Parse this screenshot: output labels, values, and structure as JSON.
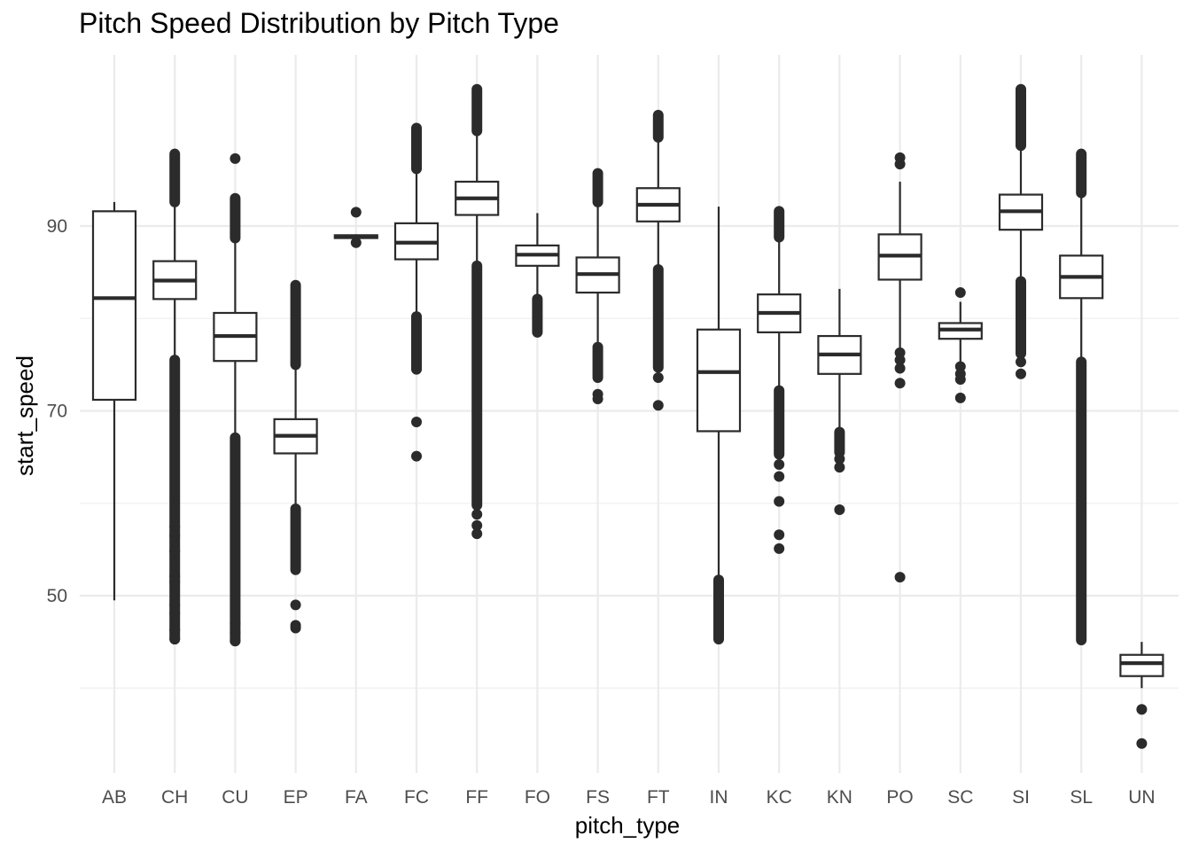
{
  "chart_data": {
    "type": "boxplot",
    "title": "Pitch Speed Distribution by Pitch Type",
    "xlabel": "pitch_type",
    "ylabel": "start_speed",
    "ylim": [
      33,
      96
    ],
    "yticks": [
      50,
      70,
      90
    ],
    "y_minor_ticks": [
      40,
      60,
      80
    ],
    "grid": true,
    "categories": [
      "AB",
      "CH",
      "CU",
      "EP",
      "FA",
      "FC",
      "FF",
      "FO",
      "FS",
      "FT",
      "IN",
      "KC",
      "KN",
      "PO",
      "SC",
      "SI",
      "SL",
      "UN"
    ],
    "boxes": [
      {
        "category": "AB",
        "whisker_low": 49.5,
        "q1": 71.2,
        "median": 82.2,
        "q3": 91.6,
        "whisker_high": 92.6,
        "outliers": []
      },
      {
        "category": "CH",
        "whisker_low": 75.6,
        "q1": 82.1,
        "median": 84.1,
        "q3": 86.2,
        "whisker_high": 92.5,
        "outlier_ranges": [
          [
            45.3,
            75.5
          ],
          [
            92.6,
            97.8
          ]
        ],
        "outliers": [
          49.0,
          48.1,
          46.3,
          45.3,
          51.5,
          52.1,
          54.8,
          56.5,
          57.5
        ]
      },
      {
        "category": "CU",
        "whisker_low": 67.2,
        "q1": 75.4,
        "median": 78.1,
        "q3": 80.6,
        "whisker_high": 88.6,
        "outlier_ranges": [
          [
            45.1,
            67.1
          ],
          [
            88.7,
            93.0
          ]
        ],
        "outliers": [
          97.3,
          47.0,
          46.0,
          45.1
        ]
      },
      {
        "category": "EP",
        "whisker_low": 59.5,
        "q1": 65.4,
        "median": 67.3,
        "q3": 69.1,
        "whisker_high": 74.8,
        "outlier_ranges": [
          [
            52.8,
            59.4
          ],
          [
            75.0,
            83.6
          ]
        ],
        "outliers": [
          49.0,
          46.8,
          46.5
        ]
      },
      {
        "category": "FA",
        "whisker_low": 88.6,
        "q1": 88.7,
        "median": 88.9,
        "q3": 89.0,
        "whisker_high": 89.1,
        "outliers": [
          91.5,
          88.2
        ]
      },
      {
        "category": "FC",
        "whisker_low": 80.3,
        "q1": 86.4,
        "median": 88.2,
        "q3": 90.3,
        "whisker_high": 96.1,
        "outlier_ranges": [
          [
            74.5,
            80.2
          ],
          [
            96.2,
            100.6
          ]
        ],
        "outliers": [
          68.8,
          65.1
        ]
      },
      {
        "category": "FF",
        "whisker_low": 85.8,
        "q1": 91.2,
        "median": 93.0,
        "q3": 94.8,
        "whisker_high": 100.2,
        "outlier_ranges": [
          [
            59.8,
            85.7
          ],
          [
            100.3,
            104.8
          ]
        ],
        "outliers": [
          58.8,
          57.6,
          56.7
        ]
      },
      {
        "category": "FO",
        "whisker_low": 82.2,
        "q1": 85.7,
        "median": 86.9,
        "q3": 87.9,
        "whisker_high": 91.4,
        "outlier_ranges": [
          [
            78.5,
            82.1
          ]
        ],
        "outliers": []
      },
      {
        "category": "FS",
        "whisker_low": 77.0,
        "q1": 82.8,
        "median": 84.8,
        "q3": 86.6,
        "whisker_high": 92.5,
        "outlier_ranges": [
          [
            73.6,
            76.9
          ],
          [
            92.6,
            95.7
          ]
        ],
        "outliers": [
          71.8,
          71.3
        ]
      },
      {
        "category": "FT",
        "whisker_low": 85.4,
        "q1": 90.5,
        "median": 92.3,
        "q3": 94.1,
        "whisker_high": 99.4,
        "outlier_ranges": [
          [
            74.7,
            85.3
          ],
          [
            99.6,
            102.0
          ]
        ],
        "outliers": [
          73.6,
          70.6
        ]
      },
      {
        "category": "IN",
        "whisker_low": 51.8,
        "q1": 67.8,
        "median": 74.2,
        "q3": 78.8,
        "whisker_high": 92.1,
        "outlier_ranges": [
          [
            45.3,
            51.7
          ]
        ],
        "outliers": []
      },
      {
        "category": "KC",
        "whisker_low": 72.3,
        "q1": 78.5,
        "median": 80.6,
        "q3": 82.6,
        "whisker_high": 88.7,
        "outlier_ranges": [
          [
            65.3,
            72.2
          ],
          [
            88.8,
            91.6
          ]
        ],
        "outliers": [
          64.2,
          62.9,
          60.2,
          56.6,
          55.1
        ]
      },
      {
        "category": "KN",
        "whisker_low": 67.8,
        "q1": 74.0,
        "median": 76.1,
        "q3": 78.1,
        "whisker_high": 83.2,
        "outlier_ranges": [
          [
            65.5,
            67.7
          ]
        ],
        "outliers": [
          64.8,
          63.9,
          59.3
        ]
      },
      {
        "category": "PO",
        "whisker_low": 76.6,
        "q1": 84.2,
        "median": 86.8,
        "q3": 89.1,
        "whisker_high": 94.8,
        "outliers": [
          97.4,
          96.7,
          76.3,
          75.5,
          74.6,
          73.0,
          52.0
        ]
      },
      {
        "category": "SC",
        "whisker_low": 75.0,
        "q1": 77.8,
        "median": 78.8,
        "q3": 79.5,
        "whisker_high": 81.8,
        "outliers": [
          82.8,
          74.8,
          74.0,
          73.4,
          71.4
        ]
      },
      {
        "category": "SI",
        "whisker_low": 84.1,
        "q1": 89.6,
        "median": 91.6,
        "q3": 93.4,
        "whisker_high": 98.6,
        "outlier_ranges": [
          [
            76.2,
            84.0
          ],
          [
            98.7,
            104.8
          ]
        ],
        "outliers": [
          75.3,
          74.0
        ]
      },
      {
        "category": "SL",
        "whisker_low": 75.4,
        "q1": 82.2,
        "median": 84.5,
        "q3": 86.8,
        "whisker_high": 93.5,
        "outlier_ranges": [
          [
            45.2,
            75.3
          ],
          [
            93.6,
            97.8
          ]
        ],
        "outliers": []
      },
      {
        "category": "UN",
        "whisker_low": 40.0,
        "q1": 41.3,
        "median": 42.7,
        "q3": 43.6,
        "whisker_high": 45.0,
        "outliers": [
          37.7,
          34.0
        ]
      }
    ]
  }
}
